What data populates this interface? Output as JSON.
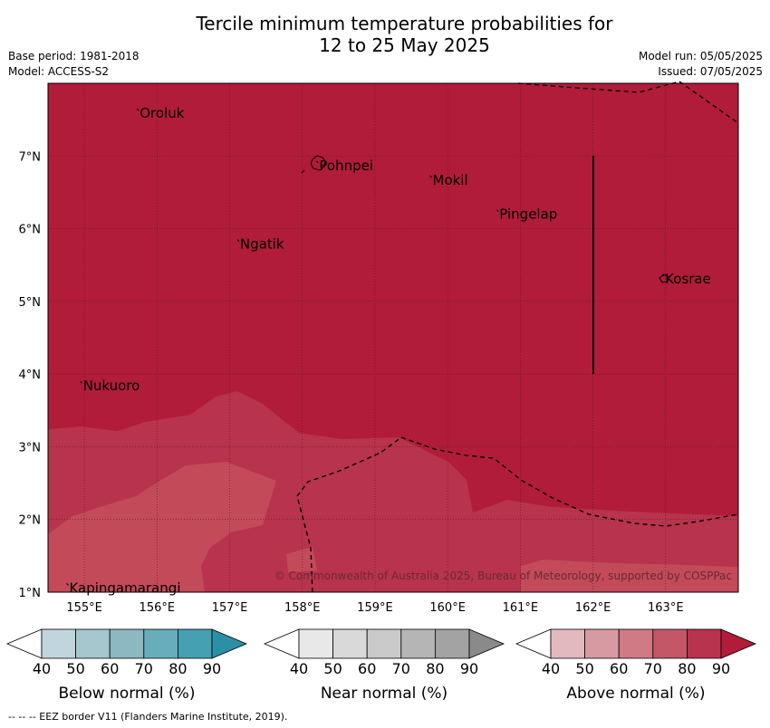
{
  "title": {
    "line1": "Tercile minimum temperature probabilities for",
    "line2": "12 to 25 May 2025"
  },
  "meta": {
    "base_period": "Base period: 1981-2018",
    "model": "Model: ACCESS-S2",
    "model_run": "Model run: 05/05/2025",
    "issued": "Issued: 07/05/2025"
  },
  "map": {
    "lon_range": [
      154.5,
      164.0
    ],
    "lat_range": [
      1.0,
      8.0
    ],
    "lon_ticks": [
      "155°E",
      "156°E",
      "157°E",
      "158°E",
      "159°E",
      "160°E",
      "161°E",
      "162°E",
      "163°E"
    ],
    "lat_ticks": [
      "7°N",
      "6°N",
      "5°N",
      "4°N",
      "3°N",
      "2°N",
      "1°N"
    ],
    "grid": true,
    "places": [
      {
        "name": "Oroluk",
        "lon": 155.75,
        "lat": 7.6
      },
      {
        "name": "Pohnpei",
        "lon": 158.22,
        "lat": 6.88
      },
      {
        "name": "Mokil",
        "lon": 159.78,
        "lat": 6.68
      },
      {
        "name": "Pingelap",
        "lon": 160.7,
        "lat": 6.21
      },
      {
        "name": "Ngatik",
        "lon": 157.13,
        "lat": 5.8
      },
      {
        "name": "Kosrae",
        "lon": 162.98,
        "lat": 5.32
      },
      {
        "name": "Nukuoro",
        "lon": 154.97,
        "lat": 3.85
      },
      {
        "name": "Kapingamarangi",
        "lon": 154.78,
        "lat": 1.07
      }
    ],
    "copyright": "© Commonwealth of Australia 2025, Bureau of Meteorology, supported by COSPPac",
    "colors": {
      "above_90": "#b01c39",
      "above_80": "#b8334d",
      "above_70": "#c24a59"
    }
  },
  "legends": [
    {
      "label": "Below normal (%)",
      "ticks": [
        "40",
        "50",
        "60",
        "70",
        "80",
        "90"
      ],
      "colors": [
        "#ffffff",
        "#c0d6dc",
        "#a5c7cd",
        "#8bb8c1",
        "#68adbb",
        "#45a0b2",
        "#2b90a5"
      ]
    },
    {
      "label": "Near normal (%)",
      "ticks": [
        "40",
        "50",
        "60",
        "70",
        "80",
        "90"
      ],
      "colors": [
        "#ffffff",
        "#e8e8e8",
        "#d9d9d9",
        "#cacaca",
        "#b5b5b5",
        "#a3a3a3",
        "#8a8a8a"
      ]
    },
    {
      "label": "Above normal (%)",
      "ticks": [
        "40",
        "50",
        "60",
        "70",
        "80",
        "90"
      ],
      "colors": [
        "#ffffff",
        "#e3b9c0",
        "#d89aa2",
        "#cf7a84",
        "#c25767",
        "#b8334d",
        "#b01c39"
      ]
    }
  ],
  "footnote": "-- -- -- EEZ border V11 (Flanders Marine Institute, 2019)."
}
